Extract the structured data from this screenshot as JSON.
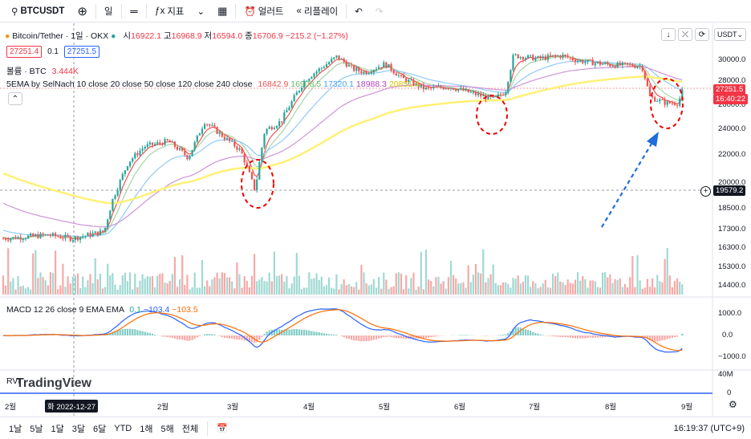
{
  "toolbar": {
    "symbol": "BTCUSDT",
    "interval": "일",
    "indicators_label": "지표",
    "alert_label": "얼러트",
    "replay_label": "리플레이"
  },
  "legend": {
    "title": "Bitcoin/Tether · 1일 · OKX",
    "open_label": "시",
    "open": "16922.1",
    "high_label": "고",
    "high": "16968.9",
    "low_label": "저",
    "low": "16594.0",
    "close_label": "종",
    "close": "16706.9",
    "change": "−215.2 (−1.27%)",
    "bid": "27251.4",
    "spread": "0.1",
    "ask": "27251.5",
    "volume_label": "볼륨 · BTC",
    "volume_value": "3.444K",
    "ema_label": "5EMA by SelNach 10 close 20 close 50 close 120 close 240 close",
    "ema_values": [
      "16842.9",
      "16908.5",
      "17320.1",
      "18988.3",
      "20851.4"
    ],
    "macd_label": "MACD 12 26 close 9 EMA EMA",
    "macd_values": [
      "0.1",
      "−103.4",
      "−103.5"
    ],
    "rvi_label": "RVI"
  },
  "currency": "USDT",
  "price_axis": [
    "30000.0",
    "28000.0",
    "26000.0",
    "24000.0",
    "22000.0",
    "20000.0",
    "18500.0",
    "17300.0",
    "16300.0",
    "15300.0",
    "14400.0"
  ],
  "macd_axis": [
    "1000.0",
    "0.0",
    "−1000.0"
  ],
  "rvi_axis": [
    "40M",
    "0"
  ],
  "last_price_tag": "27251.5",
  "countdown_tag": "16:40:22",
  "crosshair_tag": "19579.2",
  "x_axis": [
    "2월",
    "2월",
    "3월",
    "4월",
    "5월",
    "6월",
    "7월",
    "8월",
    "9월"
  ],
  "crosshair_date": "화 2022-12-27",
  "watermark": "TradingView",
  "ranges": [
    "1날",
    "5날",
    "1달",
    "3달",
    "6달",
    "YTD",
    "1해",
    "5해",
    "전체"
  ],
  "clock": "16:19:37 (UTC+9)",
  "colors": {
    "up": "#26a69a",
    "down": "#ef5350",
    "ema10": "#ef5350",
    "ema20": "#a5d6a7",
    "ema50": "#90caf9",
    "ema120": "#ce93d8",
    "ema240": "#fff176"
  }
}
